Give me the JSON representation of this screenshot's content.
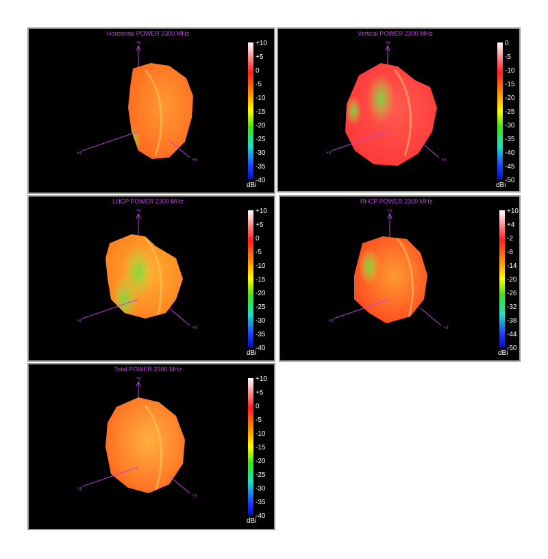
{
  "panels": [
    {
      "title": "Horizontal POWER 2300  MHz",
      "colorbar_labels": [
        "+10",
        "+5",
        "0",
        "-5",
        "-10",
        "-15",
        "-20",
        "-25",
        "-30",
        "-35",
        "-40"
      ],
      "unit": "dBi",
      "axes": {
        "y": "+y",
        "z": "+z",
        "x": "+x"
      }
    },
    {
      "title": "Vertical POWER 2300  MHz",
      "colorbar_labels": [
        "0",
        "-5",
        "-10",
        "-15",
        "-20",
        "-25",
        "-30",
        "-35",
        "-40",
        "-45",
        "-50"
      ],
      "unit": "dBi",
      "axes": {
        "y": "+y",
        "z": "+z",
        "x": "+x"
      }
    },
    {
      "title": "LHCP POWER 2300  MHz",
      "colorbar_labels": [
        "+10",
        "+5",
        "0",
        "-5",
        "-10",
        "-15",
        "-20",
        "-25",
        "-30",
        "-35",
        "-40"
      ],
      "unit": "dBi",
      "axes": {
        "y": "+y",
        "z": "+z",
        "x": "+x"
      }
    },
    {
      "title": "RHCP POWER 2300  MHz",
      "colorbar_labels": [
        "+10",
        "+4",
        "-2",
        "-8",
        "-14",
        "-20",
        "-26",
        "-32",
        "-38",
        "-44",
        "-50"
      ],
      "unit": "dBi",
      "axes": {
        "y": "+y",
        "z": "+z",
        "x": "+x"
      }
    },
    {
      "title": "Total POWER 2300  MHz",
      "colorbar_labels": [
        "+10",
        "+5",
        "0",
        "-5",
        "-10",
        "-15",
        "-20",
        "-25",
        "-30",
        "-35",
        "-40"
      ],
      "unit": "dBi",
      "axes": {
        "y": "+y",
        "z": "+z",
        "x": "+x"
      }
    }
  ]
}
